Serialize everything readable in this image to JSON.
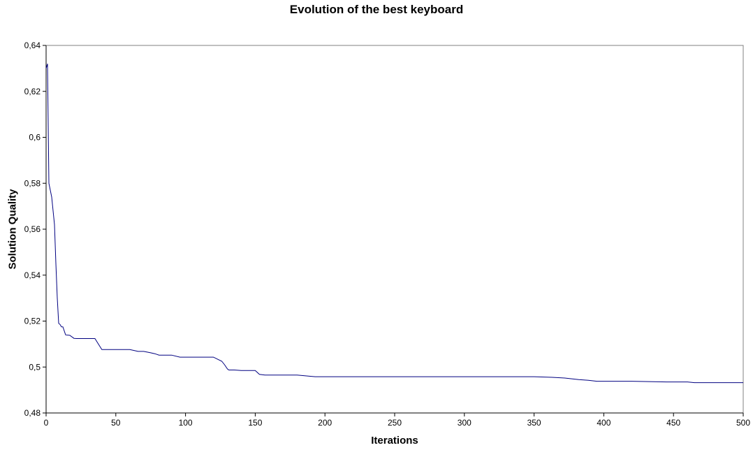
{
  "chart_data": {
    "type": "line",
    "title": "Evolution of the best keyboard",
    "xlabel": "Iterations",
    "ylabel": "Solution Quality",
    "xlim": [
      0,
      500
    ],
    "ylim": [
      0.48,
      0.64
    ],
    "x_ticks": [
      0,
      50,
      100,
      150,
      200,
      250,
      300,
      350,
      400,
      450,
      500
    ],
    "x_tick_labels": [
      "0",
      "50",
      "100",
      "150",
      "200",
      "250",
      "300",
      "350",
      "400",
      "450",
      "500"
    ],
    "y_ticks": [
      0.48,
      0.5,
      0.52,
      0.54,
      0.56,
      0.58,
      0.6,
      0.62,
      0.64
    ],
    "y_tick_labels": [
      "0,48",
      "0,5",
      "0,52",
      "0,54",
      "0,56",
      "0,58",
      "0,6",
      "0,62",
      "0,64"
    ],
    "grid": false,
    "legend": "none",
    "line_color": "#000080",
    "series": [
      {
        "x": [
          0,
          1,
          2,
          3,
          4,
          5,
          6,
          7,
          8,
          9,
          10,
          11,
          12,
          14,
          17,
          20,
          22,
          25,
          30,
          35,
          40,
          41,
          50,
          60,
          66,
          70,
          75,
          78,
          81,
          85,
          90,
          96,
          100,
          110,
          120,
          126,
          128,
          130,
          131,
          135,
          140,
          150,
          153,
          157,
          170,
          180,
          193,
          220,
          250,
          300,
          350,
          363,
          372,
          382,
          389,
          395,
          400,
          420,
          445,
          460,
          465,
          480,
          500
        ],
        "y": [
          0.63,
          0.632,
          0.58,
          0.577,
          0.574,
          0.568,
          0.562,
          0.545,
          0.53,
          0.519,
          0.5185,
          0.5175,
          0.5175,
          0.514,
          0.5138,
          0.5125,
          0.5124,
          0.5124,
          0.5124,
          0.5124,
          0.5076,
          0.5076,
          0.5076,
          0.5076,
          0.5068,
          0.5068,
          0.5062,
          0.5058,
          0.5052,
          0.5052,
          0.5052,
          0.5043,
          0.5043,
          0.5043,
          0.5043,
          0.5025,
          0.501,
          0.4992,
          0.4987,
          0.4987,
          0.4985,
          0.4985,
          0.4968,
          0.4965,
          0.4965,
          0.4965,
          0.4958,
          0.4958,
          0.4958,
          0.4958,
          0.4958,
          0.4955,
          0.4952,
          0.4945,
          0.4942,
          0.4938,
          0.4938,
          0.4938,
          0.4935,
          0.4935,
          0.4932,
          0.4932,
          0.4932
        ]
      }
    ]
  }
}
